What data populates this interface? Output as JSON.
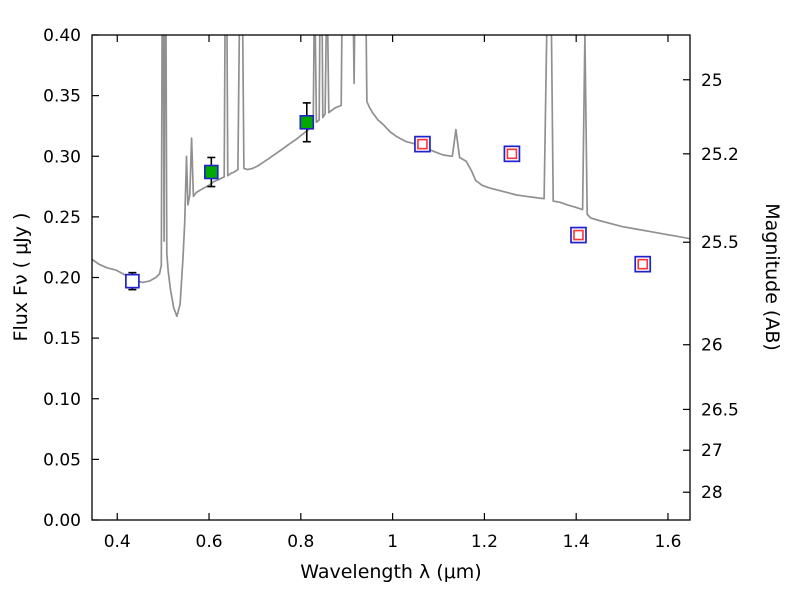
{
  "chart_data": {
    "type": "line",
    "title": "",
    "xlabel": "Wavelength  λ  (μm)",
    "ylabel_left": "Flux  Fν  ( μJy )",
    "ylabel_right": "Magnitude (AB)",
    "xlim": [
      0.345,
      1.648
    ],
    "ylim": [
      0.0,
      0.4
    ],
    "grid": false,
    "legend": "none",
    "xticks": [
      0.4,
      0.6,
      0.8,
      1,
      1.2,
      1.4,
      1.6
    ],
    "xtick_labels": [
      "0.4",
      "0.6",
      "0.8",
      "1",
      "1.2",
      "1.4",
      "1.6"
    ],
    "yticks_left": [
      0.0,
      0.05,
      0.1,
      0.15,
      0.2,
      0.25,
      0.3,
      0.35,
      0.4
    ],
    "ytick_labels_left": [
      "0.00",
      "0.05",
      "0.10",
      "0.15",
      "0.20",
      "0.25",
      "0.30",
      "0.35",
      "0.40"
    ],
    "yticks_right_mag": [
      25,
      25.2,
      25.5,
      26,
      26.5,
      27,
      28
    ],
    "ytick_labels_right": [
      "25",
      "25.2",
      "25.5",
      "26",
      "26.5",
      "27",
      "28"
    ],
    "ab_zeropoint_ujy": 23.9,
    "colors": {
      "spectrum": "#909090",
      "blue_marker": "#2222cc",
      "green_marker": "#00a800",
      "red_marker": "#ff3333",
      "errorbar": "#000000"
    },
    "series": [
      {
        "name": "model-spectrum",
        "style": "gray-line",
        "points": [
          [
            0.345,
            0.215
          ],
          [
            0.36,
            0.211
          ],
          [
            0.378,
            0.208
          ],
          [
            0.398,
            0.206
          ],
          [
            0.418,
            0.202
          ],
          [
            0.438,
            0.198
          ],
          [
            0.455,
            0.196
          ],
          [
            0.47,
            0.197
          ],
          [
            0.484,
            0.2
          ],
          [
            0.492,
            0.203
          ],
          [
            0.496,
            0.21
          ],
          [
            0.499,
            0.55
          ],
          [
            0.502,
            0.23
          ],
          [
            0.505,
            0.55
          ],
          [
            0.508,
            0.22
          ],
          [
            0.511,
            0.205
          ],
          [
            0.516,
            0.19
          ],
          [
            0.523,
            0.175
          ],
          [
            0.53,
            0.168
          ],
          [
            0.537,
            0.178
          ],
          [
            0.543,
            0.215
          ],
          [
            0.547,
            0.245
          ],
          [
            0.551,
            0.3
          ],
          [
            0.554,
            0.26
          ],
          [
            0.558,
            0.268
          ],
          [
            0.562,
            0.315
          ],
          [
            0.566,
            0.267
          ],
          [
            0.572,
            0.27
          ],
          [
            0.58,
            0.272
          ],
          [
            0.59,
            0.274
          ],
          [
            0.6,
            0.276
          ],
          [
            0.61,
            0.279
          ],
          [
            0.622,
            0.281
          ],
          [
            0.633,
            0.283
          ],
          [
            0.637,
            0.55
          ],
          [
            0.641,
            0.284
          ],
          [
            0.648,
            0.286
          ],
          [
            0.655,
            0.287
          ],
          [
            0.663,
            0.289
          ],
          [
            0.67,
            0.55
          ],
          [
            0.676,
            0.29
          ],
          [
            0.684,
            0.289
          ],
          [
            0.695,
            0.29
          ],
          [
            0.706,
            0.292
          ],
          [
            0.718,
            0.295
          ],
          [
            0.73,
            0.298
          ],
          [
            0.745,
            0.302
          ],
          [
            0.76,
            0.306
          ],
          [
            0.775,
            0.31
          ],
          [
            0.79,
            0.314
          ],
          [
            0.8,
            0.317
          ],
          [
            0.81,
            0.32
          ],
          [
            0.82,
            0.323
          ],
          [
            0.827,
            0.325
          ],
          [
            0.83,
            0.45
          ],
          [
            0.834,
            0.328
          ],
          [
            0.84,
            0.33
          ],
          [
            0.844,
            0.55
          ],
          [
            0.848,
            0.332
          ],
          [
            0.853,
            0.335
          ],
          [
            0.857,
            0.45
          ],
          [
            0.861,
            0.336
          ],
          [
            0.868,
            0.338
          ],
          [
            0.875,
            0.34
          ],
          [
            0.882,
            0.341
          ],
          [
            0.888,
            0.342
          ],
          [
            0.893,
            0.55
          ],
          [
            0.91,
            0.55
          ],
          [
            0.916,
            0.36
          ],
          [
            0.921,
            0.55
          ],
          [
            0.938,
            0.55
          ],
          [
            0.944,
            0.345
          ],
          [
            0.95,
            0.34
          ],
          [
            0.958,
            0.335
          ],
          [
            0.968,
            0.33
          ],
          [
            0.98,
            0.326
          ],
          [
            0.995,
            0.32
          ],
          [
            1.01,
            0.316
          ],
          [
            1.03,
            0.312
          ],
          [
            1.05,
            0.31
          ],
          [
            1.07,
            0.307
          ],
          [
            1.09,
            0.304
          ],
          [
            1.11,
            0.301
          ],
          [
            1.13,
            0.3
          ],
          [
            1.138,
            0.322
          ],
          [
            1.146,
            0.299
          ],
          [
            1.16,
            0.296
          ],
          [
            1.172,
            0.288
          ],
          [
            1.181,
            0.28
          ],
          [
            1.195,
            0.276
          ],
          [
            1.21,
            0.274
          ],
          [
            1.23,
            0.272
          ],
          [
            1.25,
            0.27
          ],
          [
            1.27,
            0.268
          ],
          [
            1.29,
            0.267
          ],
          [
            1.31,
            0.266
          ],
          [
            1.33,
            0.265
          ],
          [
            1.342,
            0.55
          ],
          [
            1.35,
            0.263
          ],
          [
            1.365,
            0.262
          ],
          [
            1.38,
            0.26
          ],
          [
            1.398,
            0.258
          ],
          [
            1.414,
            0.256
          ],
          [
            1.419,
            0.4
          ],
          [
            1.424,
            0.252
          ],
          [
            1.432,
            0.249
          ],
          [
            1.45,
            0.247
          ],
          [
            1.47,
            0.245
          ],
          [
            1.5,
            0.242
          ],
          [
            1.53,
            0.24
          ],
          [
            1.56,
            0.238
          ],
          [
            1.59,
            0.236
          ],
          [
            1.62,
            0.234
          ],
          [
            1.648,
            0.232
          ]
        ]
      }
    ],
    "photometry_points": [
      {
        "x": 0.433,
        "y": 0.197,
        "err": 0.007,
        "style": "blue-open"
      },
      {
        "x": 0.605,
        "y": 0.287,
        "err": 0.012,
        "style": "green-filled"
      },
      {
        "x": 0.813,
        "y": 0.328,
        "err": 0.016,
        "style": "green-filled"
      },
      {
        "x": 1.065,
        "y": 0.31,
        "err": 0.006,
        "style": "red-open"
      },
      {
        "x": 1.26,
        "y": 0.302,
        "err": 0.006,
        "style": "red-open"
      },
      {
        "x": 1.405,
        "y": 0.235,
        "err": 0.006,
        "style": "red-open"
      },
      {
        "x": 1.545,
        "y": 0.211,
        "err": 0.006,
        "style": "red-open"
      }
    ]
  }
}
